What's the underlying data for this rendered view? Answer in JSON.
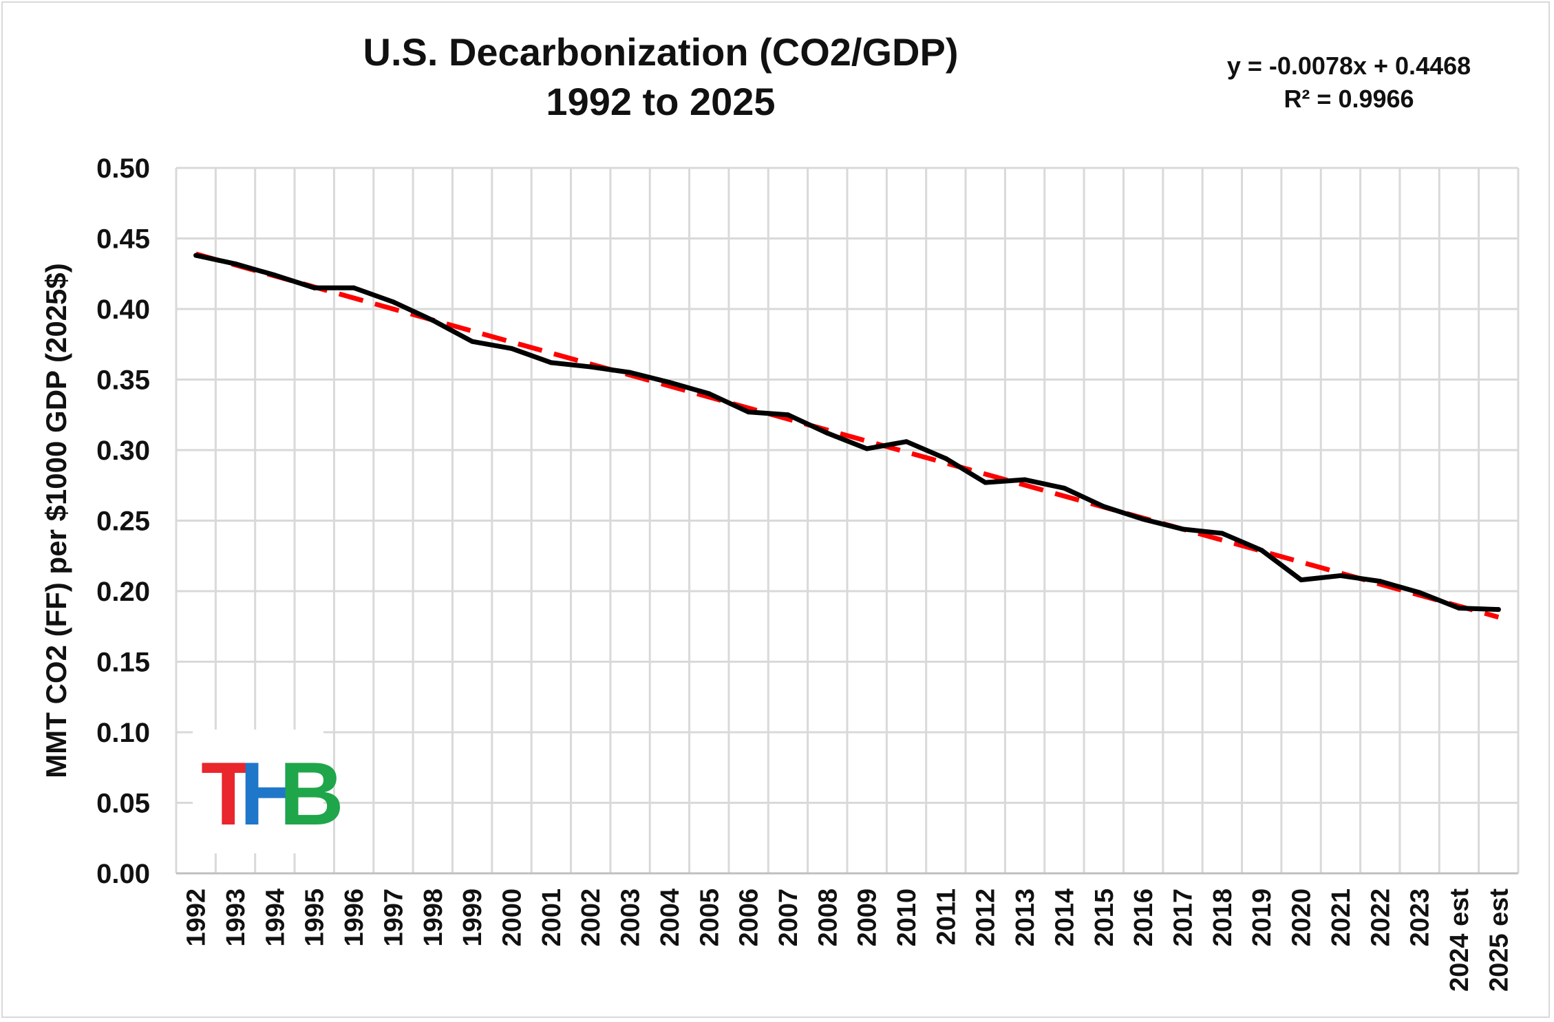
{
  "chart_data": {
    "type": "line",
    "title": [
      "U.S. Decarbonization (CO2/GDP)",
      "1992 to 2025"
    ],
    "ylabel": "MMT CO2 (FF) per $1000 GDP (2025$)",
    "xlabel": "",
    "categories": [
      "1992",
      "1993",
      "1994",
      "1995",
      "1996",
      "1997",
      "1998",
      "1999",
      "2000",
      "2001",
      "2002",
      "2003",
      "2004",
      "2005",
      "2006",
      "2007",
      "2008",
      "2009",
      "2010",
      "2011",
      "2012",
      "2013",
      "2014",
      "2015",
      "2016",
      "2017",
      "2018",
      "2019",
      "2020",
      "2021",
      "2022",
      "2023",
      "2024 est",
      "2025 est"
    ],
    "ylim": [
      0,
      0.5
    ],
    "yticks": [
      "0.00",
      "0.05",
      "0.10",
      "0.15",
      "0.20",
      "0.25",
      "0.30",
      "0.35",
      "0.40",
      "0.45",
      "0.50"
    ],
    "grid": true,
    "series": [
      {
        "values": [
          0.438,
          0.432,
          0.424,
          0.415,
          0.415,
          0.405,
          0.392,
          0.377,
          0.372,
          0.362,
          0.359,
          0.355,
          0.348,
          0.34,
          0.327,
          0.325,
          0.312,
          0.301,
          0.306,
          0.294,
          0.277,
          0.279,
          0.273,
          0.26,
          0.251,
          0.244,
          0.241,
          0.229,
          0.208,
          0.211,
          0.207,
          0.199,
          0.188,
          0.187
        ],
        "color": "#000000",
        "style": "solid"
      }
    ],
    "trendline": {
      "type": "linear",
      "slope": -0.0078,
      "intercept": 0.4468,
      "color": "#ff0000",
      "style": "dashed",
      "equation_label": "y = -0.0078x  + 0.4468",
      "r2_label": "R² = 0.9966"
    }
  },
  "logo": {
    "letters": [
      {
        "char": "T",
        "color": "#e8262b"
      },
      {
        "char": "H",
        "color": "#1f77c9"
      },
      {
        "char": "B",
        "color": "#1fa64a"
      }
    ]
  }
}
